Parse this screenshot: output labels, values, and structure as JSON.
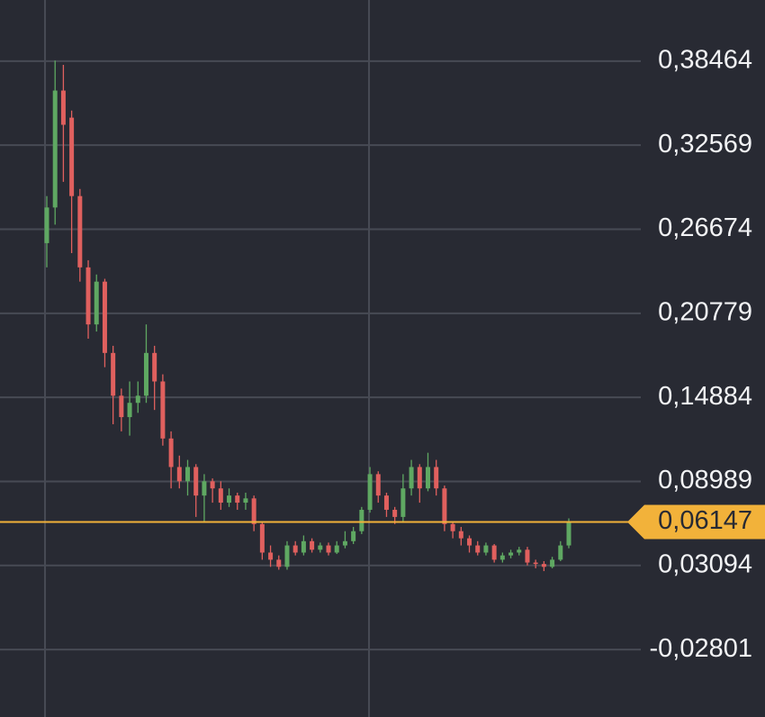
{
  "chart_data": {
    "type": "candlestick",
    "open": [
      0.257,
      0.282,
      0.364,
      0.345,
      0.29,
      0.24,
      0.2,
      0.23,
      0.18,
      0.15,
      0.135,
      0.145,
      0.15,
      0.18,
      0.16,
      0.12,
      0.1,
      0.09,
      0.1,
      0.08,
      0.09,
      0.085,
      0.075,
      0.08,
      0.075,
      0.078,
      0.06,
      0.04,
      0.035,
      0.03,
      0.045,
      0.04,
      0.048,
      0.042,
      0.045,
      0.04,
      0.045,
      0.048,
      0.055,
      0.07,
      0.095,
      0.08,
      0.07,
      0.065,
      0.085,
      0.1,
      0.085,
      0.1,
      0.085,
      0.06,
      0.055,
      0.05,
      0.045,
      0.04,
      0.045,
      0.035,
      0.038,
      0.04,
      0.042,
      0.033,
      0.032,
      0.03,
      0.035,
      0.045
    ],
    "high": [
      0.29,
      0.385,
      0.382,
      0.35,
      0.295,
      0.245,
      0.235,
      0.232,
      0.185,
      0.155,
      0.16,
      0.16,
      0.2,
      0.185,
      0.165,
      0.125,
      0.108,
      0.105,
      0.102,
      0.095,
      0.092,
      0.09,
      0.085,
      0.082,
      0.082,
      0.08,
      0.062,
      0.045,
      0.038,
      0.048,
      0.048,
      0.052,
      0.05,
      0.047,
      0.047,
      0.048,
      0.055,
      0.058,
      0.072,
      0.1,
      0.097,
      0.082,
      0.072,
      0.095,
      0.105,
      0.102,
      0.11,
      0.105,
      0.087,
      0.062,
      0.058,
      0.052,
      0.048,
      0.047,
      0.046,
      0.04,
      0.042,
      0.044,
      0.044,
      0.035,
      0.034,
      0.037,
      0.048,
      0.064
    ],
    "low": [
      0.24,
      0.27,
      0.3,
      0.25,
      0.23,
      0.19,
      0.195,
      0.17,
      0.13,
      0.125,
      0.122,
      0.138,
      0.145,
      0.14,
      0.115,
      0.085,
      0.085,
      0.08,
      0.065,
      0.062,
      0.075,
      0.07,
      0.072,
      0.07,
      0.07,
      0.055,
      0.035,
      0.03,
      0.028,
      0.028,
      0.038,
      0.038,
      0.04,
      0.04,
      0.038,
      0.039,
      0.043,
      0.046,
      0.053,
      0.068,
      0.075,
      0.065,
      0.06,
      0.062,
      0.08,
      0.075,
      0.083,
      0.08,
      0.055,
      0.05,
      0.045,
      0.04,
      0.038,
      0.038,
      0.033,
      0.033,
      0.036,
      0.038,
      0.031,
      0.029,
      0.027,
      0.029,
      0.034,
      0.043
    ],
    "close": [
      0.282,
      0.364,
      0.34,
      0.29,
      0.24,
      0.2,
      0.23,
      0.18,
      0.15,
      0.135,
      0.145,
      0.15,
      0.18,
      0.16,
      0.12,
      0.1,
      0.09,
      0.1,
      0.08,
      0.09,
      0.085,
      0.075,
      0.08,
      0.075,
      0.078,
      0.06,
      0.04,
      0.035,
      0.03,
      0.045,
      0.04,
      0.048,
      0.042,
      0.045,
      0.04,
      0.045,
      0.048,
      0.055,
      0.07,
      0.095,
      0.08,
      0.07,
      0.065,
      0.085,
      0.1,
      0.085,
      0.1,
      0.085,
      0.06,
      0.055,
      0.05,
      0.045,
      0.04,
      0.045,
      0.035,
      0.038,
      0.04,
      0.042,
      0.033,
      0.032,
      0.03,
      0.035,
      0.045,
      0.061
    ],
    "up_color": "#5fa862",
    "down_color": "#e0605e",
    "ylim": [
      -0.0753,
      0.4275
    ],
    "yticks": [
      {
        "value": 0.38464,
        "label": "0,38464"
      },
      {
        "value": 0.32569,
        "label": "0,32569"
      },
      {
        "value": 0.26674,
        "label": "0,26674"
      },
      {
        "value": 0.20779,
        "label": "0,20779"
      },
      {
        "value": 0.14884,
        "label": "0,14884"
      },
      {
        "value": 0.08989,
        "label": "0,08989"
      },
      {
        "value": 0.03094,
        "label": "0,03094"
      },
      {
        "value": -0.02801,
        "label": "-0,02801"
      }
    ],
    "grid": true,
    "last_price": {
      "value": 0.06147,
      "label": "0,06147"
    },
    "last_price_color": "#f2b23a"
  }
}
